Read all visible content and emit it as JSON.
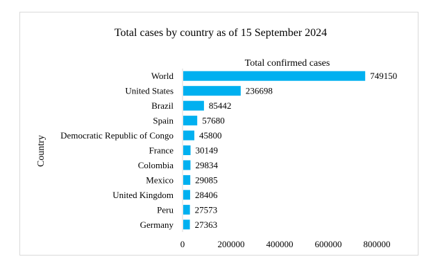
{
  "chart_data": {
    "type": "bar",
    "orientation": "horizontal",
    "title": "Total cases by country as of 15 September 2024",
    "series_label": "Total confirmed cases",
    "ylabel": "Country",
    "xlabel": "",
    "categories": [
      "World",
      "United States",
      "Brazil",
      "Spain",
      "Democratic Republic of Congo",
      "France",
      "Colombia",
      "Mexico",
      "United Kingdom",
      "Peru",
      "Germany"
    ],
    "values": [
      749150,
      236698,
      85442,
      57680,
      45800,
      30149,
      29834,
      29085,
      28406,
      27573,
      27363
    ],
    "value_labels": [
      "749150",
      "236698",
      "85442",
      "57680",
      "45800",
      "30149",
      "29834",
      "29085",
      "28406",
      "27573",
      "27363"
    ],
    "xlim": [
      0,
      800000
    ],
    "xticks": [
      0,
      200000,
      400000,
      600000,
      800000
    ],
    "xtick_labels": [
      "0",
      "200000",
      "400000",
      "600000",
      "800000"
    ],
    "bar_color": "#00b0f0",
    "grid": false,
    "legend": "none"
  }
}
